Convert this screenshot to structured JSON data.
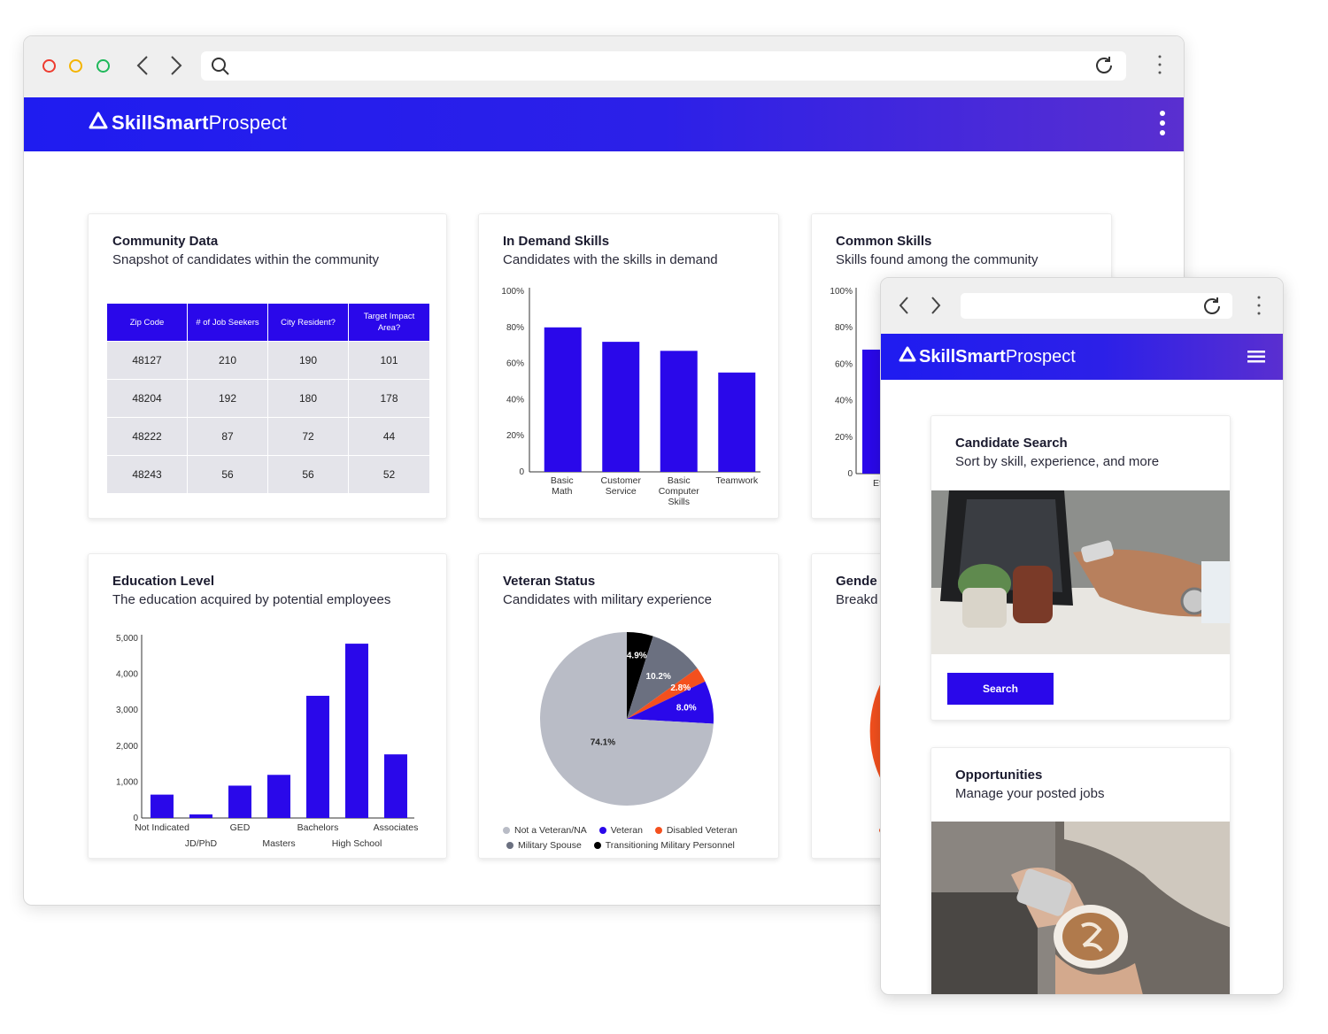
{
  "desktop": {
    "app": {
      "brand_bold": "SkillSmart",
      "brand_light": " Prospect"
    },
    "community": {
      "title": "Community Data",
      "subtitle": "Snapshot of candidates within the community",
      "columns": [
        "Zip Code",
        "# of Job Seekers",
        "City Resident?",
        "Target Impact Area?"
      ],
      "rows": [
        [
          "48127",
          "210",
          "190",
          "101"
        ],
        [
          "48204",
          "192",
          "180",
          "178"
        ],
        [
          "48222",
          "87",
          "72",
          "44"
        ],
        [
          "48243",
          "56",
          "56",
          "52"
        ]
      ]
    },
    "in_demand": {
      "title": "In Demand Skills",
      "subtitle": "Candidates with the skills in demand"
    },
    "common": {
      "title": "Common Skills",
      "subtitle": "Skills found among the community",
      "visible_tick": "Ef"
    },
    "education": {
      "title": "Education Level",
      "subtitle": "The education acquired by potential employees"
    },
    "veteran": {
      "title": "Veteran Status",
      "subtitle": "Candidates with military experience"
    },
    "gender": {
      "title": "Gende",
      "subtitle": "Breakd"
    }
  },
  "mobile": {
    "app": {
      "brand_bold": "SkillSmart",
      "brand_light": " Prospect"
    },
    "candidate": {
      "title": "Candidate Search",
      "subtitle": "Sort by skill, experience, and more",
      "button": "Search"
    },
    "opportunities": {
      "title": "Opportunities",
      "subtitle": "Manage your posted jobs"
    }
  },
  "colors": {
    "brand_blue": "#2a08ea",
    "gray": "#b9bcc6",
    "dark_gray": "#6b7080",
    "orange": "#f4501e",
    "black": "#000000"
  },
  "icons": [
    "back-icon",
    "forward-icon",
    "search-icon",
    "reload-icon",
    "kebab-menu-icon",
    "hamburger-menu-icon",
    "brand-logo-icon"
  ],
  "chart_data": [
    {
      "id": "in_demand",
      "type": "bar",
      "categories": [
        "Basic Math",
        "Customer Service",
        "Basic Computer Skills",
        "Teamwork"
      ],
      "values": [
        80,
        72,
        67,
        55
      ],
      "ylim": [
        0,
        100
      ],
      "yticks": [
        "0",
        "20%",
        "40%",
        "60%",
        "80%",
        "100%"
      ],
      "grid": false
    },
    {
      "id": "common",
      "type": "bar",
      "yticks": [
        "0",
        "20%",
        "40%",
        "60%",
        "80%",
        "100%"
      ],
      "ylim": [
        0,
        100
      ],
      "values": [
        68
      ]
    },
    {
      "id": "education",
      "type": "bar",
      "categories": [
        "Not Indicated",
        "JD/PhD",
        "GED",
        "Masters",
        "Bachelors",
        "High School",
        "Associates"
      ],
      "values": [
        650,
        100,
        900,
        1200,
        3400,
        4850,
        1770
      ],
      "ylim": [
        0,
        5000
      ],
      "yticks": [
        "0",
        "1,000",
        "2,000",
        "3,000",
        "4,000",
        "5,000"
      ],
      "grid": false
    },
    {
      "id": "veteran",
      "type": "pie",
      "slices": [
        {
          "label": "Transitioning Military Personnel",
          "value": 4.9,
          "display": "4.9%",
          "color": "#000000"
        },
        {
          "label": "Military Spouse",
          "value": 10.2,
          "display": "10.2%",
          "color": "#6b7080"
        },
        {
          "label": "Disabled Veteran",
          "value": 2.8,
          "display": "2.8%",
          "color": "#f4501e"
        },
        {
          "label": "Veteran",
          "value": 8.0,
          "display": "8.0%",
          "color": "#2a08ea"
        },
        {
          "label": "Not a Veteran/NA",
          "value": 74.1,
          "display": "74.1%",
          "color": "#b9bcc6"
        }
      ],
      "legend": [
        [
          "Not a Veteran/NA",
          "Veteran",
          "Disabled Veteran"
        ],
        [
          "Military Spouse",
          "Transitioning Military Personnel"
        ]
      ],
      "legend_placement": "bottom"
    }
  ]
}
